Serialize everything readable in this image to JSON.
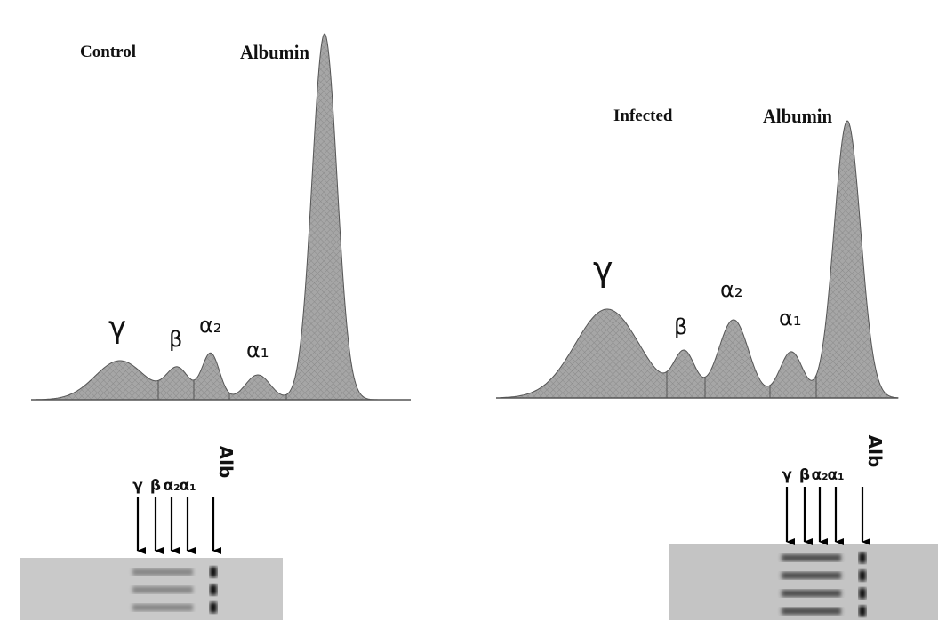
{
  "control": {
    "title": "Control",
    "albumin": "Albumin",
    "gamma": "γ",
    "beta": "β",
    "alpha2": "α₂",
    "alpha1": "α₁"
  },
  "infected": {
    "title": "Infected",
    "albumin": "Albumin",
    "gamma": "γ",
    "beta": "β",
    "alpha2": "α₂",
    "alpha1": "α₁"
  },
  "gels": [
    {
      "lanes": [
        "γ",
        "β",
        "α₂",
        "α₁"
      ],
      "albumin": "Alb"
    },
    {
      "lanes": [
        "γ",
        "β",
        "α₂",
        "α₁"
      ],
      "albumin": "Alb"
    }
  ]
}
